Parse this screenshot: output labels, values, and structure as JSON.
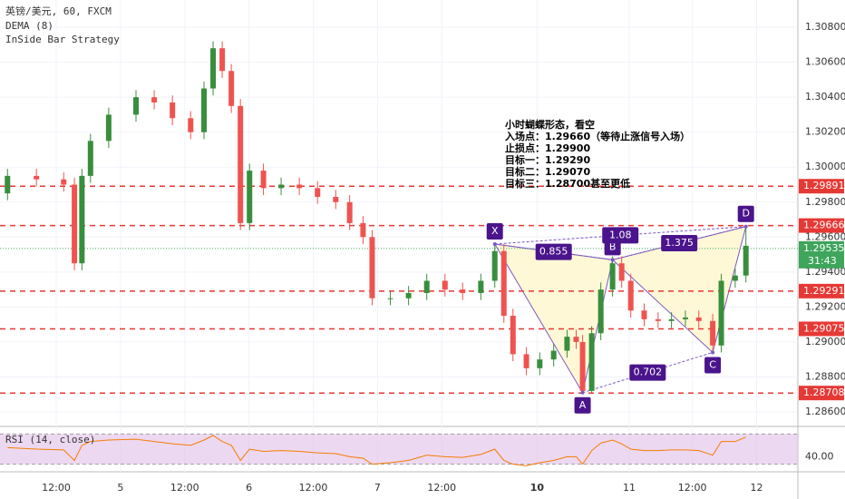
{
  "chart_data": [
    {
      "type": "candlestick",
      "title": "英镑/美元, 60, FXCM",
      "indicators": [
        "DEMA (8)",
        "InSide Bar Strategy"
      ],
      "x": [
        1.4,
        6.8,
        11.9,
        13.9,
        15.3,
        16.9,
        20.3,
        25.4,
        28.8,
        32.2,
        35.6,
        38.1,
        39.8,
        41.5,
        43.2,
        44.9,
        46.6,
        49.2,
        52.5,
        55.9,
        59.3,
        62.7,
        65.3,
        67.8,
        69.5,
        72.9,
        76.3,
        79.7,
        83.1,
        86.4,
        89.8,
        92.4,
        94.1,
        95.8,
        98.3,
        100.8,
        103.4,
        105.9,
        107.6,
        108.8,
        110.5,
        112.2,
        114.4,
        116.1,
        117.8,
        120.3,
        122.9,
        125.4,
        128,
        130.5,
        133.1,
        134.7,
        137.3,
        139.3
      ],
      "open": [
        1.2985,
        1.2995,
        1.2993,
        1.299,
        1.2945,
        1.2995,
        1.3015,
        1.303,
        1.304,
        1.3037,
        1.3028,
        1.302,
        1.3045,
        1.3068,
        1.3055,
        1.3035,
        1.2968,
        1.2998,
        1.2988,
        1.299,
        1.2988,
        1.2983,
        1.298,
        1.2968,
        1.296,
        1.2925,
        1.2925,
        1.2928,
        1.2935,
        1.293,
        1.2928,
        1.2935,
        1.2952,
        1.2915,
        1.2893,
        1.2885,
        1.289,
        1.2895,
        1.2903,
        1.29,
        1.2872,
        1.2905,
        1.293,
        1.2945,
        1.2935,
        1.2918,
        1.2913,
        1.2912,
        1.2913,
        1.2914,
        1.2912,
        1.2898,
        1.2935,
        1.2938
      ],
      "high": [
        1.2999,
        1.2999,
        1.2997,
        1.2994,
        1.2999,
        1.3019,
        1.3034,
        1.3044,
        1.3044,
        1.3041,
        1.3032,
        1.3049,
        1.3072,
        1.3072,
        1.3059,
        1.3039,
        1.3002,
        1.3002,
        1.2994,
        1.2994,
        1.2992,
        1.2987,
        1.2984,
        1.2972,
        1.2964,
        1.2929,
        1.2932,
        1.2939,
        1.2939,
        1.2934,
        1.2939,
        1.2956,
        1.2956,
        1.2919,
        1.2897,
        1.2894,
        1.2899,
        1.2907,
        1.2907,
        1.2904,
        1.2909,
        1.2934,
        1.2949,
        1.2949,
        1.2939,
        1.2922,
        1.2917,
        1.2917,
        1.2918,
        1.2918,
        1.2916,
        1.2939,
        1.2942,
        1.2966
      ],
      "low": [
        1.2981,
        1.2989,
        1.2986,
        1.2941,
        1.2941,
        1.2991,
        1.3011,
        1.3026,
        1.3033,
        1.3024,
        1.3016,
        1.3016,
        1.3041,
        1.3051,
        1.3031,
        1.2964,
        1.2964,
        1.2984,
        1.2984,
        1.2984,
        1.2979,
        1.2976,
        1.2964,
        1.2956,
        1.2921,
        1.2921,
        1.2921,
        1.2924,
        1.2926,
        1.2924,
        1.2924,
        1.2931,
        1.2911,
        1.2889,
        1.2881,
        1.2881,
        1.2886,
        1.2891,
        1.2896,
        1.2871,
        1.2871,
        1.2901,
        1.2926,
        1.2931,
        1.2914,
        1.2909,
        1.2908,
        1.2908,
        1.2909,
        1.2908,
        1.2894,
        1.2894,
        1.2931,
        1.2934
      ],
      "close": [
        1.2995,
        1.2993,
        1.299,
        1.2945,
        1.2995,
        1.3015,
        1.303,
        1.304,
        1.3037,
        1.3028,
        1.302,
        1.3045,
        1.3068,
        1.3055,
        1.3035,
        1.2968,
        1.2998,
        1.2988,
        1.299,
        1.2988,
        1.2983,
        1.298,
        1.2968,
        1.296,
        1.2925,
        1.2925,
        1.2928,
        1.2935,
        1.293,
        1.2928,
        1.2935,
        1.2952,
        1.2915,
        1.2893,
        1.2885,
        1.289,
        1.2895,
        1.2903,
        1.29,
        1.2872,
        1.2905,
        1.293,
        1.2945,
        1.2935,
        1.2918,
        1.2913,
        1.2912,
        1.2913,
        1.2914,
        1.2912,
        1.2898,
        1.2935,
        1.2938,
        1.2955
      ],
      "up_color": "#388e3c",
      "down_color": "#ef5350",
      "xlim": [
        0,
        149
      ],
      "xticks": [
        {
          "value": 10.5,
          "label": "12:00"
        },
        {
          "value": 22.5,
          "label": "5"
        },
        {
          "value": 34.5,
          "label": "12:00"
        },
        {
          "value": 46.5,
          "label": "6"
        },
        {
          "value": 58.5,
          "label": "12:00"
        },
        {
          "value": 70.5,
          "label": "7"
        },
        {
          "value": 82.5,
          "label": "12:00"
        },
        {
          "value": 100.3,
          "label": "10"
        },
        {
          "value": 117.5,
          "label": "11"
        },
        {
          "value": 129.3,
          "label": "12:00"
        },
        {
          "value": 141.3,
          "label": "12"
        }
      ],
      "ylim": [
        1.28517,
        1.30956
      ],
      "yticks": [
        {
          "value": 1.286,
          "label": "1.28600"
        },
        {
          "value": 1.288,
          "label": "1.28800"
        },
        {
          "value": 1.29,
          "label": "1.29000"
        },
        {
          "value": 1.292,
          "label": "1.29200"
        },
        {
          "value": 1.294,
          "label": "1.29400"
        },
        {
          "value": 1.296,
          "label": "1.29600"
        },
        {
          "value": 1.298,
          "label": "1.29800"
        },
        {
          "value": 1.3,
          "label": "1.30000"
        },
        {
          "value": 1.302,
          "label": "1.30200"
        },
        {
          "value": 1.304,
          "label": "1.30400"
        },
        {
          "value": 1.306,
          "label": "1.30600"
        },
        {
          "value": 1.308,
          "label": "1.30800"
        }
      ],
      "levels": [
        {
          "value": 1.29891,
          "label": "1.29891"
        },
        {
          "value": 1.29666,
          "label": "1.29666"
        },
        {
          "value": 1.29291,
          "label": "1.29291"
        },
        {
          "value": 1.29075,
          "label": "1.29075"
        },
        {
          "value": 1.28708,
          "label": "1.28708"
        }
      ],
      "level_color": "#e53935",
      "last_price": {
        "value": 1.29535,
        "label": "1.29535"
      },
      "countdown": "31:43",
      "last_color": "#3ea55b",
      "pattern": {
        "points": [
          {
            "label": "X",
            "x": 92.4,
            "y": 1.2956
          },
          {
            "label": "A",
            "x": 108.8,
            "y": 1.2871
          },
          {
            "label": "B",
            "x": 114.4,
            "y": 1.2947
          },
          {
            "label": "C",
            "x": 133.1,
            "y": 1.2894
          },
          {
            "label": "D",
            "x": 139.3,
            "y": 1.2966
          }
        ],
        "ratios": [
          0.855,
          1.08,
          1.375,
          0.702
        ],
        "color": "#7e57c2"
      },
      "annotation": [
        "小时蝴蝶形态，看空",
        "入场点：1.29660（等待止涨信号入场）",
        "止损点：1.29900",
        "目标一：1.29290",
        "目标二：1.29070",
        "目标三：1.28700甚至更低"
      ]
    },
    {
      "type": "line",
      "title": "RSI (14, close)",
      "x": [
        1.4,
        6.8,
        11.9,
        13.9,
        15.3,
        16.9,
        20.3,
        25.4,
        28.8,
        32.2,
        35.6,
        38.1,
        39.8,
        41.5,
        43.2,
        44.9,
        46.6,
        49.2,
        52.5,
        55.9,
        59.3,
        62.7,
        65.3,
        67.8,
        69.5,
        72.9,
        76.3,
        79.7,
        83.1,
        86.4,
        89.8,
        92.4,
        94.1,
        95.8,
        98.3,
        100.8,
        103.4,
        105.9,
        107.6,
        108.8,
        110.5,
        112.2,
        114.4,
        116.1,
        117.8,
        120.3,
        122.9,
        125.4,
        128,
        130.5,
        133.1,
        134.7,
        137.3,
        139.3
      ],
      "series": [
        {
          "color": "#f57c00",
          "values": [
            52,
            50,
            49,
            35,
            55,
            60,
            62,
            63,
            60,
            57,
            55,
            62,
            68,
            60,
            55,
            35,
            50,
            47,
            48,
            47,
            45,
            44,
            40,
            38,
            30,
            32,
            35,
            42,
            40,
            39,
            43,
            50,
            35,
            30,
            28,
            32,
            35,
            40,
            40,
            30,
            48,
            58,
            62,
            57,
            50,
            48,
            48,
            49,
            49,
            48,
            42,
            60,
            60,
            66
          ]
        }
      ],
      "xlim": [
        0,
        149
      ],
      "ylim": [
        20,
        80
      ],
      "yticks": [
        {
          "value": 40,
          "label": "40.00"
        }
      ],
      "band": [
        30,
        70
      ],
      "band_color": "#e1bee7"
    }
  ]
}
